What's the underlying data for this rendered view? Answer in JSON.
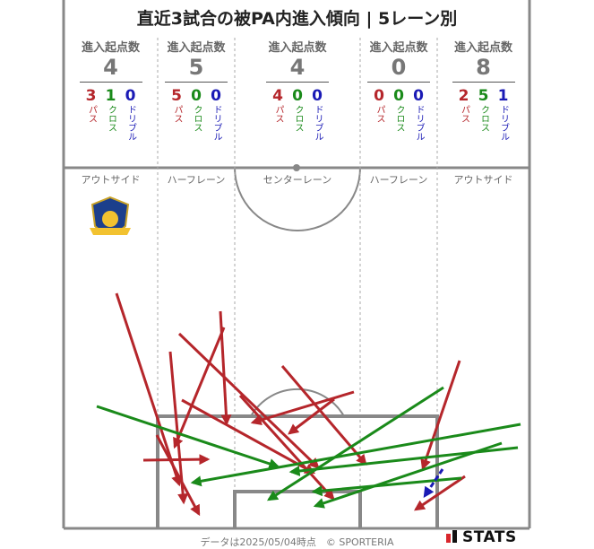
{
  "title": "直近3試合の被PA内進入傾向 | 5レーン別",
  "header_label": "進入起点数",
  "breakdown_labels": {
    "pass": "パス",
    "cross": "クロス",
    "dribble": "ドリブル"
  },
  "colors": {
    "pass": "#b5262b",
    "cross": "#1a8a1a",
    "dribble": "#1a1ab5",
    "lines": "#888888",
    "dashed": "#aaaaaa"
  },
  "lanes": [
    {
      "name": "アウトサイド",
      "total": "4",
      "pass": "3",
      "cross": "1",
      "dribble": "0"
    },
    {
      "name": "ハーフレーン",
      "total": "5",
      "pass": "5",
      "cross": "0",
      "dribble": "0"
    },
    {
      "name": "センターレーン",
      "total": "4",
      "pass": "4",
      "cross": "0",
      "dribble": "0"
    },
    {
      "name": "ハーフレーン",
      "total": "0",
      "pass": "0",
      "cross": "0",
      "dribble": "0"
    },
    {
      "name": "アウトサイド",
      "total": "8",
      "pass": "2",
      "cross": "5",
      "dribble": "1"
    }
  ],
  "badge_text": "Zweigen",
  "footer": "データは2025/05/04時点　© SPORTERIA",
  "stats_logo": "STATS",
  "chart_data": {
    "type": "scatter",
    "title": "直近3試合の被PA内進入傾向 | 5レーン別",
    "series": [
      {
        "name": "パス",
        "color": "#b5262b",
        "arrows": [
          {
            "from": [
              130,
              327
            ],
            "to": [
              200,
              540
            ]
          },
          {
            "from": [
              190,
              392
            ],
            "to": [
              205,
              560
            ]
          },
          {
            "from": [
              246,
              347
            ],
            "to": [
              253,
              472
            ]
          },
          {
            "from": [
              250,
              365
            ],
            "to": [
              195,
              498
            ]
          },
          {
            "from": [
              160,
              513
            ],
            "to": [
              232,
              512
            ]
          },
          {
            "from": [
              200,
              372
            ],
            "to": [
              355,
              521
            ]
          },
          {
            "from": [
              203,
              446
            ],
            "to": [
              350,
              527
            ]
          },
          {
            "from": [
              268,
              441
            ],
            "to": [
              372,
              556
            ]
          },
          {
            "from": [
              315,
              408
            ],
            "to": [
              408,
              517
            ]
          },
          {
            "from": [
              395,
              437
            ],
            "to": [
              282,
              471
            ]
          },
          {
            "from": [
              373,
              445
            ],
            "to": [
              323,
              483
            ]
          },
          {
            "from": [
              513,
              402
            ],
            "to": [
              472,
              522
            ]
          },
          {
            "from": [
              519,
              531
            ],
            "to": [
              464,
              568
            ]
          },
          {
            "from": [
              175,
              485
            ],
            "to": [
              222,
              573
            ]
          }
        ]
      },
      {
        "name": "クロス",
        "color": "#1a8a1a",
        "arrows": [
          {
            "from": [
              108,
              453
            ],
            "to": [
              310,
              520
            ]
          },
          {
            "from": [
              495,
              432
            ],
            "to": [
              300,
              557
            ]
          },
          {
            "from": [
              581,
              473
            ],
            "to": [
              215,
              538
            ]
          },
          {
            "from": [
              578,
              499
            ],
            "to": [
              325,
              526
            ]
          },
          {
            "from": [
              560,
              494
            ],
            "to": [
              352,
              564
            ]
          },
          {
            "from": [
              515,
              533
            ],
            "to": [
              350,
              548
            ]
          }
        ]
      },
      {
        "name": "ドリブル",
        "color": "#1a1ab5",
        "arrows": [
          {
            "from": [
              494,
              523
            ],
            "to": [
              474,
              553
            ],
            "dashed": true
          }
        ]
      }
    ]
  }
}
